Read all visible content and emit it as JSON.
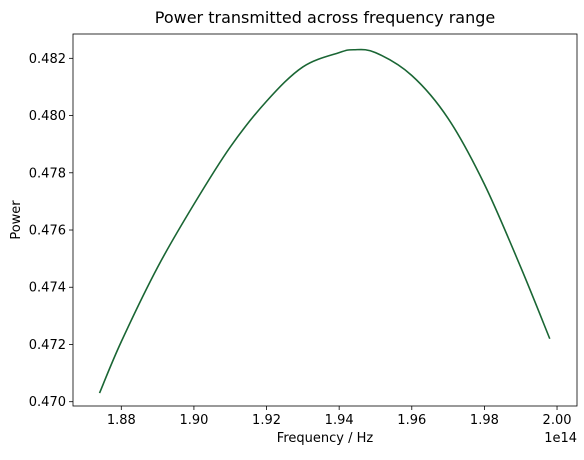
{
  "chart_data": {
    "type": "line",
    "title": "Power transmitted across frequency range",
    "xlabel": "Frequency / Hz",
    "ylabel": "Power",
    "x_offset_label": "1e14",
    "xlim": [
      186670000000000.0,
      200550000000000.0
    ],
    "ylim": [
      0.46985,
      0.48285
    ],
    "grid": false,
    "x_ticks": [
      {
        "value": 188000000000000.0,
        "label": "1.88"
      },
      {
        "value": 190000000000000.0,
        "label": "1.90"
      },
      {
        "value": 192000000000000.0,
        "label": "1.92"
      },
      {
        "value": 194000000000000.0,
        "label": "1.94"
      },
      {
        "value": 196000000000000.0,
        "label": "1.96"
      },
      {
        "value": 198000000000000.0,
        "label": "1.98"
      },
      {
        "value": 200000000000000.0,
        "label": "2.00"
      }
    ],
    "y_ticks": [
      {
        "value": 0.47,
        "label": "0.470"
      },
      {
        "value": 0.472,
        "label": "0.472"
      },
      {
        "value": 0.474,
        "label": "0.474"
      },
      {
        "value": 0.476,
        "label": "0.476"
      },
      {
        "value": 0.478,
        "label": "0.478"
      },
      {
        "value": 0.48,
        "label": "0.480"
      },
      {
        "value": 0.482,
        "label": "0.482"
      }
    ],
    "series": [
      {
        "color": "#1a6634",
        "x": [
          187400000000000.0,
          188000000000000.0,
          189000000000000.0,
          190000000000000.0,
          191000000000000.0,
          192000000000000.0,
          193000000000000.0,
          194000000000000.0,
          194400000000000.0,
          195000000000000.0,
          196000000000000.0,
          197000000000000.0,
          198000000000000.0,
          199000000000000.0,
          199800000000000.0
        ],
        "y": [
          0.4703,
          0.4721,
          0.4747,
          0.4769,
          0.4789,
          0.4805,
          0.4817,
          0.4822,
          0.4823,
          0.4822,
          0.4814,
          0.4799,
          0.4776,
          0.4747,
          0.4722
        ]
      }
    ]
  }
}
